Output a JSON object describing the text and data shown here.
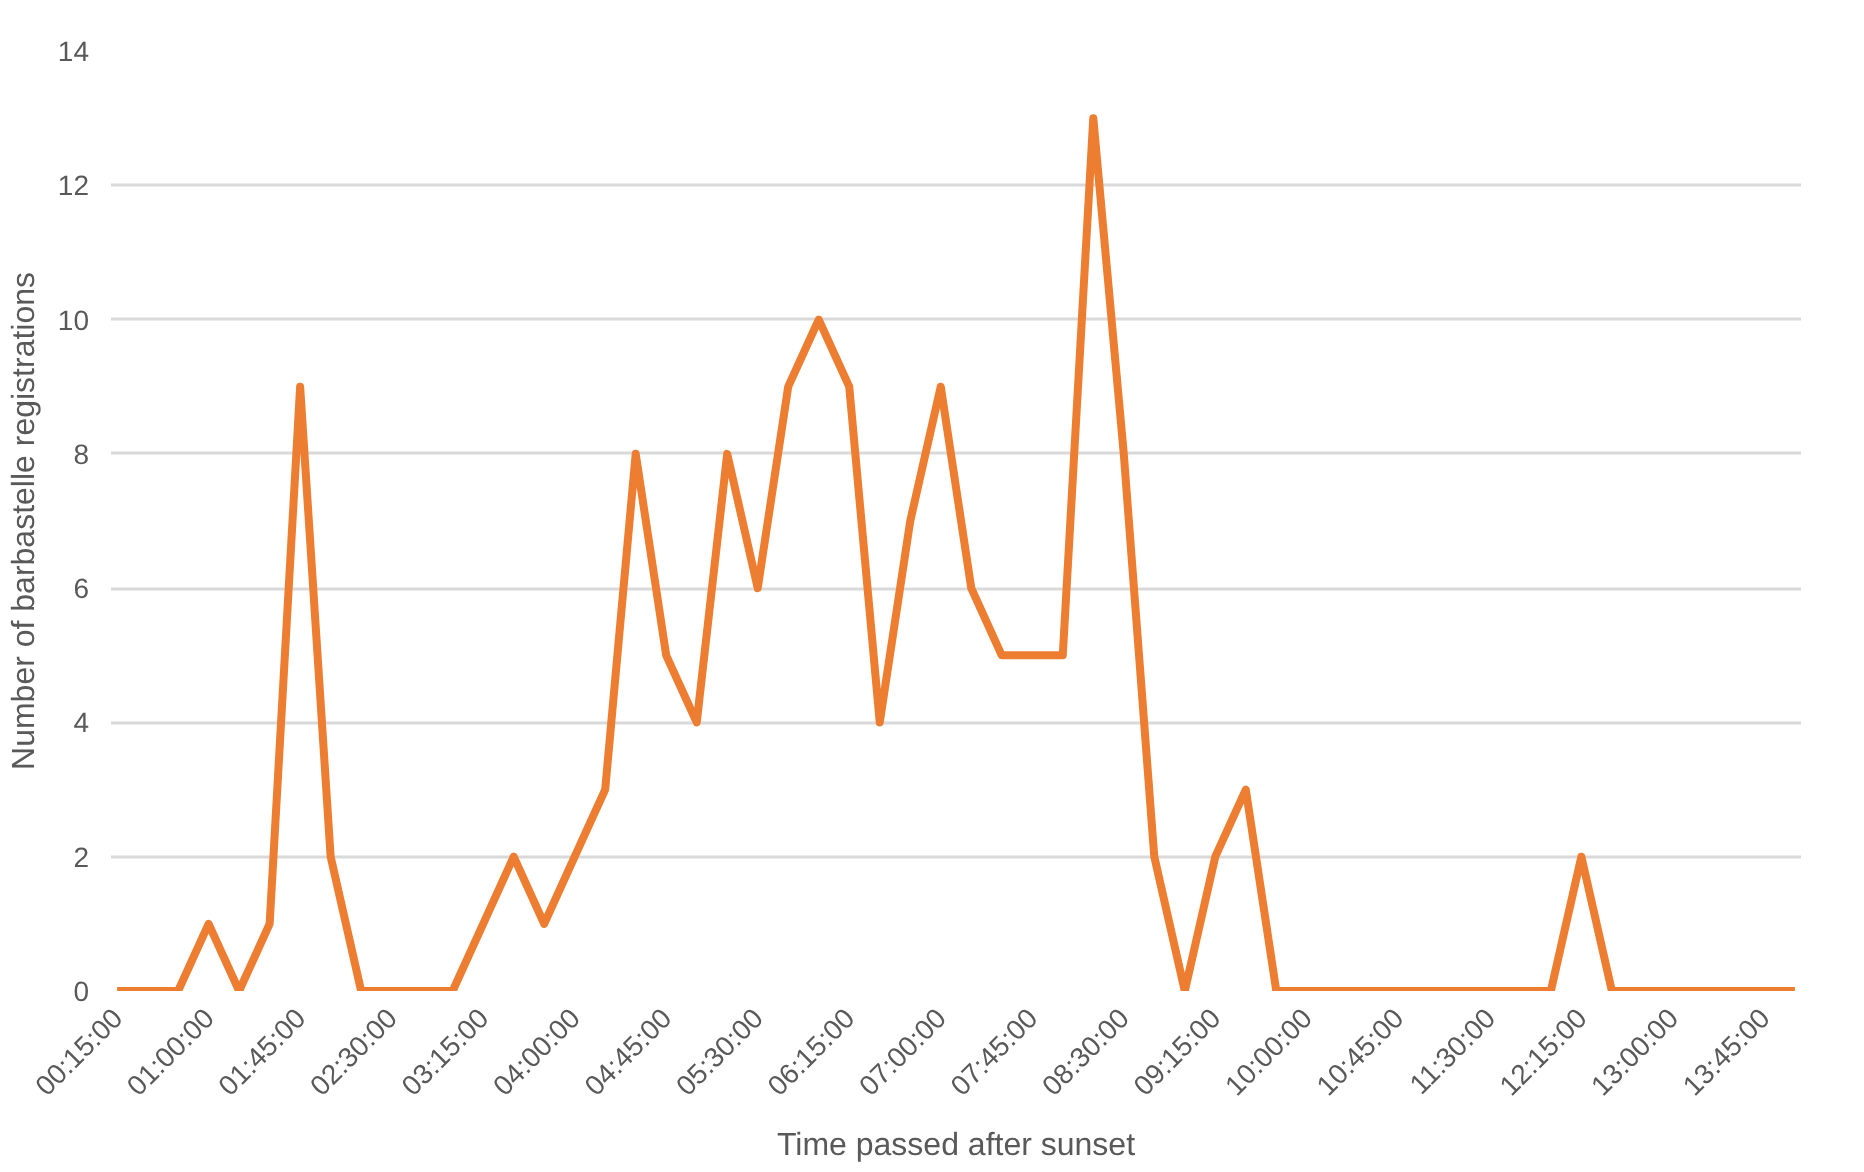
{
  "chart_data": {
    "type": "line",
    "xlabel": "Time passed after sunset",
    "ylabel": "Number of barbastelle registrations",
    "x": [
      0.25,
      0.5,
      0.75,
      1.0,
      1.25,
      1.5,
      1.75,
      2.0,
      2.25,
      2.5,
      2.75,
      3.0,
      3.25,
      3.5,
      3.75,
      4.0,
      4.25,
      4.5,
      4.75,
      5.0,
      5.25,
      5.5,
      5.75,
      6.0,
      6.25,
      6.5,
      6.75,
      7.0,
      7.25,
      7.5,
      7.75,
      8.0,
      8.25,
      8.5,
      8.75,
      9.0,
      9.25,
      9.5,
      9.75,
      10.0,
      10.25,
      10.5,
      10.75,
      11.0,
      11.25,
      11.5,
      11.75,
      12.0,
      12.25,
      12.5,
      12.75,
      13.0,
      13.25,
      13.5,
      13.75,
      14.0
    ],
    "series": [
      {
        "color": "#ed7d31",
        "values": [
          0,
          0,
          0,
          1,
          0,
          1,
          9,
          2,
          0,
          0,
          0,
          0,
          1,
          2,
          1,
          2,
          3,
          8,
          5,
          4,
          8,
          6,
          9,
          10,
          9,
          4,
          7,
          9,
          6,
          5,
          5,
          5,
          13,
          8,
          2,
          0,
          2,
          3,
          0,
          0,
          0,
          0,
          0,
          0,
          0,
          0,
          0,
          0,
          2,
          0,
          0,
          0,
          0,
          0,
          0,
          0
        ]
      }
    ],
    "xlim": [
      0.2,
      14.05
    ],
    "ylim": [
      0,
      14
    ],
    "yticks": [
      0,
      2,
      4,
      6,
      8,
      10,
      12,
      14
    ],
    "xticks": [
      {
        "value": 0.25,
        "label": "00:15:00"
      },
      {
        "value": 1.0,
        "label": "01:00:00"
      },
      {
        "value": 1.75,
        "label": "01:45:00"
      },
      {
        "value": 2.5,
        "label": "02:30:00"
      },
      {
        "value": 3.25,
        "label": "03:15:00"
      },
      {
        "value": 4.0,
        "label": "04:00:00"
      },
      {
        "value": 4.75,
        "label": "04:45:00"
      },
      {
        "value": 5.5,
        "label": "05:30:00"
      },
      {
        "value": 6.25,
        "label": "06:15:00"
      },
      {
        "value": 7.0,
        "label": "07:00:00"
      },
      {
        "value": 7.75,
        "label": "07:45:00"
      },
      {
        "value": 8.5,
        "label": "08:30:00"
      },
      {
        "value": 9.25,
        "label": "09:15:00"
      },
      {
        "value": 10.0,
        "label": "10:00:00"
      },
      {
        "value": 10.75,
        "label": "10:45:00"
      },
      {
        "value": 11.5,
        "label": "11:30:00"
      },
      {
        "value": 12.25,
        "label": "12:15:00"
      },
      {
        "value": 13.0,
        "label": "13:00:00"
      },
      {
        "value": 13.75,
        "label": "13:45:00"
      }
    ],
    "grid": "y",
    "line_style": "solid",
    "marker": "none"
  }
}
